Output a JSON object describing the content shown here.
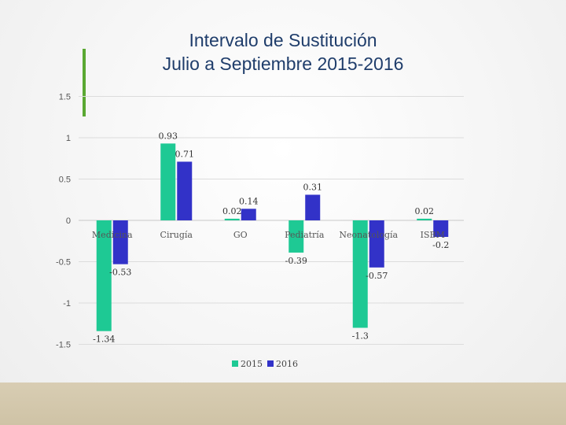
{
  "title": {
    "line1": "Intervalo de Sustitución",
    "line2": "Julio a Septiembre 2015-2016"
  },
  "colors": {
    "title": "#1f3d6b",
    "accent": "#5aa832",
    "series_2015": "#1ec994",
    "series_2016": "#3232c8",
    "footer": "#d3c7aa"
  },
  "chart_data": {
    "type": "bar",
    "categories": [
      "Medicina",
      "Cirugía",
      "GO",
      "Pediatría",
      "Neonatología",
      "ISBM"
    ],
    "series": [
      {
        "name": "2015",
        "values": [
          -1.34,
          0.93,
          0.02,
          -0.39,
          -1.3,
          0.02
        ]
      },
      {
        "name": "2016",
        "values": [
          -0.53,
          0.71,
          0.14,
          0.31,
          -0.57,
          -0.2
        ]
      }
    ],
    "y_ticks": [
      "1.5",
      "1",
      "0.5",
      "0",
      "-0.5",
      "-1",
      "-1.5"
    ],
    "ylim": [
      -1.5,
      1.5
    ],
    "grid": true,
    "legend": "bottom-center"
  }
}
